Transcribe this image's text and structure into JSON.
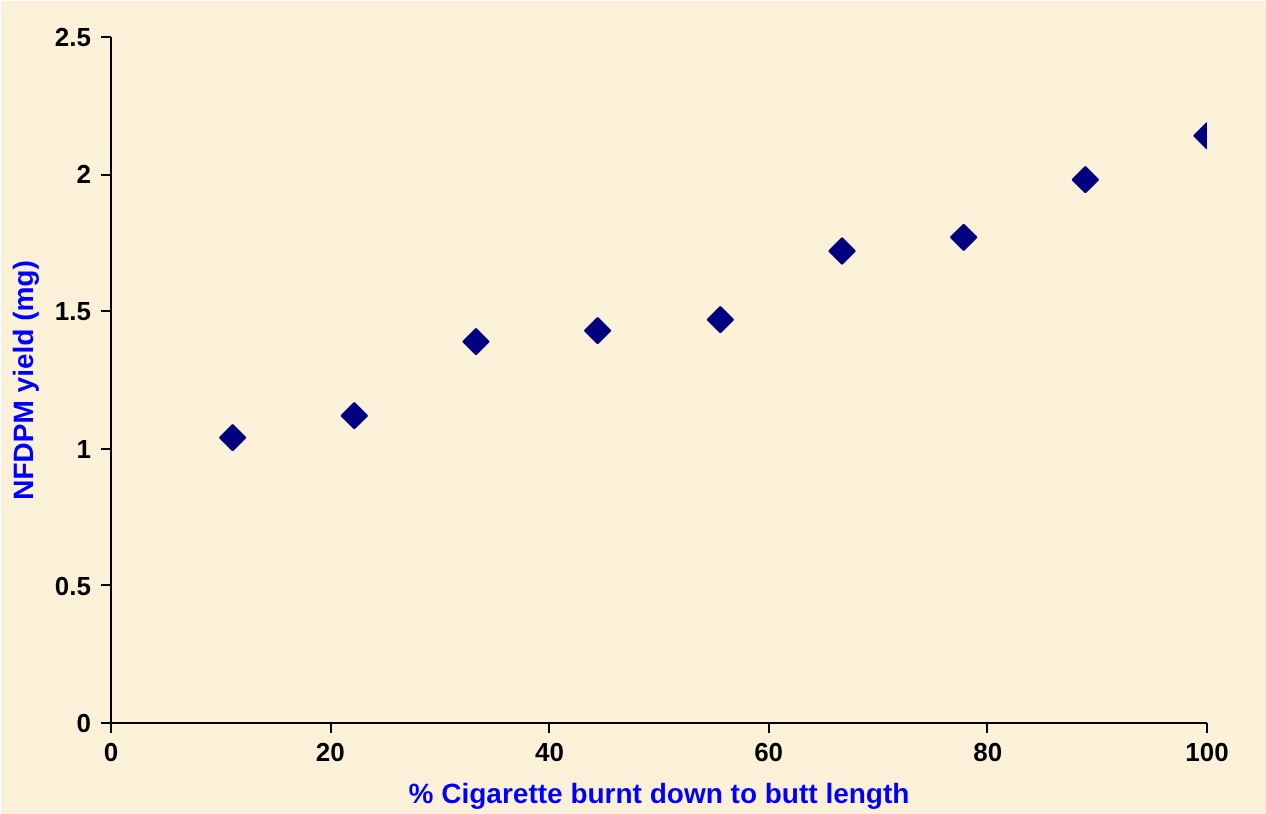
{
  "chart_data": {
    "type": "scatter",
    "xlabel": "% Cigarette burnt down to butt length",
    "ylabel": "NFDPM yield (mg)",
    "x": [
      11.1,
      22.2,
      33.3,
      44.4,
      55.6,
      66.7,
      77.8,
      88.9,
      100
    ],
    "series": [
      {
        "color": "#000080",
        "values": [
          1.04,
          1.12,
          1.39,
          1.43,
          1.47,
          1.72,
          1.77,
          1.98,
          2.14
        ]
      }
    ],
    "xlim": [
      0,
      100
    ],
    "ylim": [
      0,
      2.5
    ],
    "xticks": [
      0,
      20,
      40,
      60,
      80,
      100
    ],
    "yticks": [
      0,
      0.5,
      1,
      1.5,
      2,
      2.5
    ],
    "marker": "diamond",
    "grid": false
  }
}
